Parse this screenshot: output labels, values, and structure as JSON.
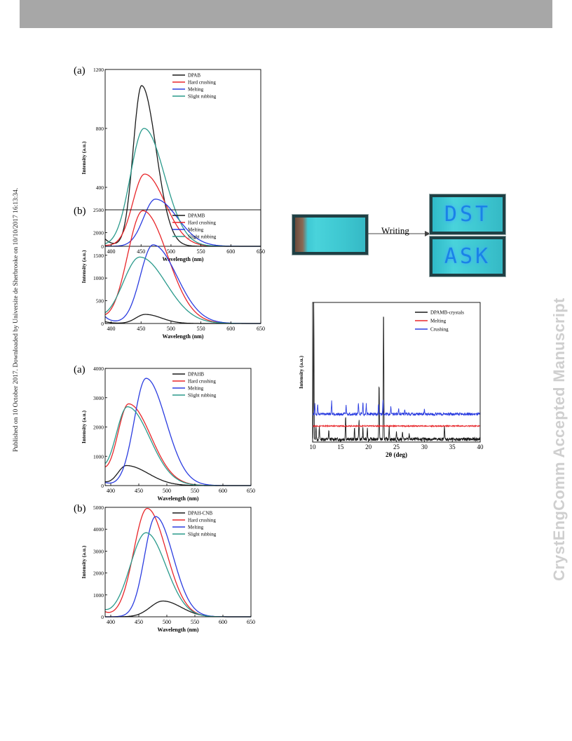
{
  "header": {
    "side_note": "Published on 10 October 2017. Downloaded by Universite de Sherbrooke on 10/10/2017 16:13:34.",
    "watermark": "CrystEngComm Accepted Manuscript"
  },
  "photos": {
    "arrow_label": "Writing",
    "text_top": "DST",
    "text_bottom": "ASK"
  },
  "colors": {
    "black": "#1a1a1a",
    "red": "#e8262a",
    "blue": "#2b3de0",
    "teal": "#2a9a8c"
  },
  "chart_data": [
    {
      "id": "c1",
      "type": "line",
      "panel": "(a)",
      "xlabel": "Wavelength (nm)",
      "ylabel": "Intensity (a.u.)",
      "xlim": [
        390,
        650
      ],
      "ylim": [
        0,
        1200
      ],
      "xticks": [
        400,
        450,
        500,
        550,
        600,
        650
      ],
      "yticks": [
        0,
        400,
        800,
        1200
      ],
      "legend": [
        "DPAB",
        "Hard crushing",
        "Melting",
        "Slight rubbing"
      ],
      "series": [
        {
          "name": "DPAB",
          "color": "#1a1a1a",
          "peak": 1090,
          "center": 451,
          "wl": 20,
          "wr": 34,
          "base": 50
        },
        {
          "name": "Hard crushing",
          "color": "#e8262a",
          "peak": 490,
          "center": 456,
          "wl": 28,
          "wr": 48,
          "base": 5
        },
        {
          "name": "Melting",
          "color": "#2b3de0",
          "peak": 320,
          "center": 474,
          "wl": 28,
          "wr": 52,
          "base": 0
        },
        {
          "name": "Slight rubbing",
          "color": "#2a9a8c",
          "peak": 800,
          "center": 455,
          "wl": 32,
          "wr": 48,
          "base": 5
        }
      ]
    },
    {
      "id": "c2",
      "type": "line",
      "panel": "(b)",
      "xlabel": "Wavelength (nm)",
      "ylabel": "Intensity (a.u.)",
      "xlim": [
        390,
        650
      ],
      "ylim": [
        0,
        2500
      ],
      "xticks": [
        400,
        450,
        500,
        550,
        600,
        650
      ],
      "yticks": [
        0,
        500,
        1000,
        1500,
        2000,
        2500
      ],
      "legend": [
        "DPAMB",
        "Hard crushing",
        "Melting",
        "Slight rubbing"
      ],
      "series": [
        {
          "name": "DPAMB",
          "color": "#1a1a1a",
          "peak": 200,
          "center": 457,
          "wl": 22,
          "wr": 38,
          "base": 40
        },
        {
          "name": "Hard crushing",
          "color": "#e8262a",
          "peak": 2480,
          "center": 453,
          "wl": 36,
          "wr": 58,
          "base": 80
        },
        {
          "name": "Melting",
          "color": "#2b3de0",
          "peak": 1730,
          "center": 470,
          "wl": 30,
          "wr": 56,
          "base": 150
        },
        {
          "name": "Slight rubbing",
          "color": "#2a9a8c",
          "peak": 1460,
          "center": 448,
          "wl": 40,
          "wr": 62,
          "base": 60
        }
      ]
    },
    {
      "id": "c3",
      "type": "line",
      "panel": "(a)",
      "xlabel": "Wavelength (nm)",
      "ylabel": "Intensity (a.u.)",
      "xlim": [
        390,
        650
      ],
      "ylim": [
        0,
        4000
      ],
      "xticks": [
        400,
        450,
        500,
        550,
        600,
        650
      ],
      "yticks": [
        0,
        1000,
        2000,
        3000,
        4000
      ],
      "legend": [
        "DPAHB",
        "Hard crushing",
        "Melting",
        "Slight rubbing"
      ],
      "series": [
        {
          "name": "DPAHB",
          "color": "#1a1a1a",
          "peak": 680,
          "center": 428,
          "wl": 22,
          "wr": 55,
          "base": 100
        },
        {
          "name": "Hard crushing",
          "color": "#e8262a",
          "peak": 2780,
          "center": 432,
          "wl": 28,
          "wr": 56,
          "base": 350
        },
        {
          "name": "Melting",
          "color": "#2b3de0",
          "peak": 3660,
          "center": 463,
          "wl": 30,
          "wr": 50,
          "base": 100
        },
        {
          "name": "Slight rubbing",
          "color": "#2a9a8c",
          "peak": 2680,
          "center": 430,
          "wl": 30,
          "wr": 56,
          "base": 300
        }
      ]
    },
    {
      "id": "c4",
      "type": "line",
      "panel": "(b)",
      "xlabel": "Wavelength (nm)",
      "ylabel": "Intensity (a.u.)",
      "xlim": [
        390,
        650
      ],
      "ylim": [
        0,
        5000
      ],
      "xticks": [
        400,
        450,
        500,
        550,
        600,
        650
      ],
      "yticks": [
        0,
        1000,
        2000,
        3000,
        4000,
        5000
      ],
      "legend": [
        "DPAH-CNB",
        "Hard crushing",
        "Melting",
        "Slight rubbing"
      ],
      "series": [
        {
          "name": "DPAH-CNB",
          "color": "#1a1a1a",
          "peak": 720,
          "center": 493,
          "wl": 32,
          "wr": 46,
          "base": 0
        },
        {
          "name": "Hard crushing",
          "color": "#e8262a",
          "peak": 4950,
          "center": 465,
          "wl": 34,
          "wr": 48,
          "base": 200
        },
        {
          "name": "Melting",
          "color": "#2b3de0",
          "peak": 4580,
          "center": 480,
          "wl": 28,
          "wr": 44,
          "base": 0
        },
        {
          "name": "Slight rubbing",
          "color": "#2a9a8c",
          "peak": 3840,
          "center": 463,
          "wl": 40,
          "wr": 50,
          "base": 200
        }
      ]
    },
    {
      "id": "c5",
      "type": "line",
      "panel": "",
      "xlabel": "2θ (deg)",
      "ylabel": "Intensity (a.u.)",
      "xlim": [
        10,
        40
      ],
      "ylim": [
        0,
        1
      ],
      "xticks": [
        10,
        15,
        20,
        25,
        30,
        35,
        40
      ],
      "yticks": [],
      "legend": [
        "DPAMB-crystals",
        "Melting",
        "Crushing"
      ],
      "series": [
        {
          "name": "DPAMB-crystals",
          "color": "#1a1a1a",
          "offset": 0.02,
          "noise": 0.012,
          "peaks": [
            [
              10.2,
              1.0
            ],
            [
              10.6,
              0.1
            ],
            [
              11.2,
              0.08
            ],
            [
              12.9,
              0.06
            ],
            [
              15.9,
              0.17
            ],
            [
              17.5,
              0.08
            ],
            [
              18.3,
              0.14
            ],
            [
              19.0,
              0.08
            ],
            [
              19.8,
              0.09
            ],
            [
              21.9,
              0.4
            ],
            [
              22.7,
              0.94
            ],
            [
              23.7,
              0.09
            ],
            [
              25.0,
              0.06
            ],
            [
              26.1,
              0.05
            ],
            [
              27.3,
              0.04
            ],
            [
              33.6,
              0.1
            ]
          ]
        },
        {
          "name": "Melting",
          "color": "#e8262a",
          "offset": 0.115,
          "noise": 0.004,
          "peaks": []
        },
        {
          "name": "Crushing",
          "color": "#2b3de0",
          "offset": 0.2,
          "noise": 0.01,
          "peaks": [
            [
              10.4,
              0.07
            ],
            [
              10.9,
              0.07
            ],
            [
              13.4,
              0.09
            ],
            [
              16.0,
              0.06
            ],
            [
              18.2,
              0.08
            ],
            [
              19.0,
              0.09
            ],
            [
              19.6,
              0.07
            ],
            [
              21.8,
              0.08
            ],
            [
              22.6,
              0.1
            ],
            [
              24.0,
              0.05
            ],
            [
              25.4,
              0.04
            ],
            [
              26.5,
              0.03
            ],
            [
              30.0,
              0.03
            ]
          ]
        }
      ]
    }
  ]
}
